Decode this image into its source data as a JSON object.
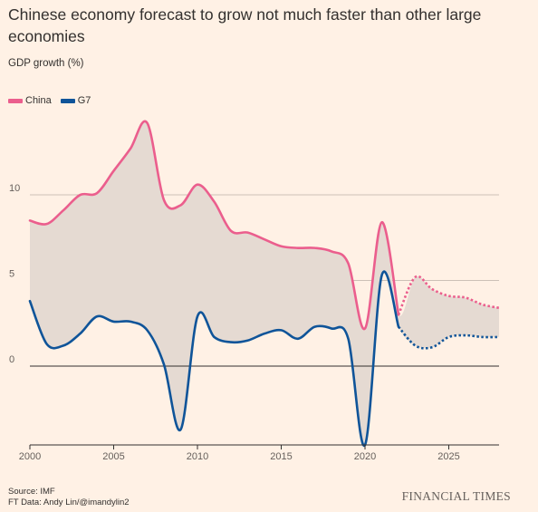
{
  "header": {
    "title": "Chinese economy forecast to grow not much faster than other large economies",
    "subtitle": "GDP growth (%)"
  },
  "footer": {
    "source": "Source: IMF",
    "credit": "FT Data: Andy Lin/@imandylin2",
    "brand": "FINANCIAL TIMES"
  },
  "colors": {
    "background": "#fff1e5",
    "china": "#eb5e8d",
    "g7": "#0f5499",
    "fill": "#e5dad2",
    "grid": "#ccc1b7",
    "zero_line": "#33302e"
  },
  "chart_data": {
    "type": "line",
    "title": "Chinese economy forecast to grow not much faster than other large economies",
    "ylabel": "GDP growth (%)",
    "xlabel": "",
    "xlim": [
      2000,
      2028
    ],
    "ylim": [
      -4.6,
      14.5
    ],
    "x_ticks": [
      2000,
      2005,
      2010,
      2015,
      2020,
      2025
    ],
    "y_ticks": [
      0,
      5,
      10
    ],
    "grid": true,
    "legend_position": "top-left",
    "forecast_start": 2022,
    "area_between_series": true,
    "x": [
      2000,
      2001,
      2002,
      2003,
      2004,
      2005,
      2006,
      2007,
      2008,
      2009,
      2010,
      2011,
      2012,
      2013,
      2014,
      2015,
      2016,
      2017,
      2018,
      2019,
      2020,
      2021,
      2022,
      2023,
      2024,
      2025,
      2026,
      2027,
      2028
    ],
    "series": [
      {
        "name": "China",
        "values": [
          8.5,
          8.3,
          9.1,
          10.0,
          10.1,
          11.4,
          12.7,
          14.2,
          9.7,
          9.4,
          10.6,
          9.6,
          7.9,
          7.8,
          7.4,
          7.0,
          6.9,
          6.9,
          6.7,
          6.0,
          2.2,
          8.4,
          3.0,
          5.2,
          4.5,
          4.1,
          4.0,
          3.6,
          3.4
        ]
      },
      {
        "name": "G7",
        "values": [
          3.8,
          1.3,
          1.2,
          1.9,
          2.9,
          2.6,
          2.6,
          2.1,
          0.1,
          -3.7,
          2.9,
          1.7,
          1.4,
          1.5,
          1.9,
          2.1,
          1.6,
          2.3,
          2.2,
          1.6,
          -4.6,
          5.3,
          2.3,
          1.2,
          1.1,
          1.7,
          1.8,
          1.7,
          1.7
        ]
      }
    ]
  }
}
